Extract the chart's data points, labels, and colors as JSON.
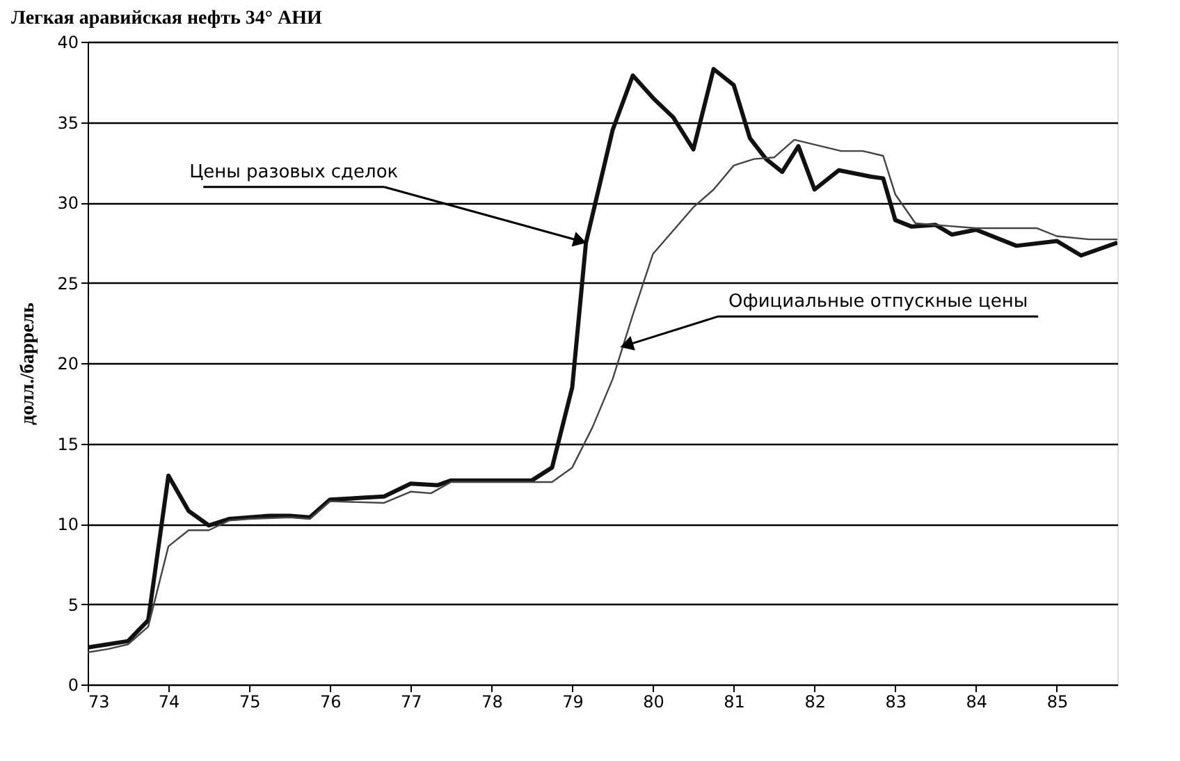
{
  "chart_data": {
    "type": "line",
    "title": "Легкая аравийская нефть 34°  АНИ",
    "ylabel": "долл./баррель",
    "xlim": [
      73,
      85.75
    ],
    "xticks": [
      73,
      74,
      75,
      76,
      77,
      78,
      79,
      80,
      81,
      82,
      83,
      84,
      85
    ],
    "ylim": [
      0,
      40
    ],
    "yticks": [
      0,
      5,
      10,
      15,
      20,
      25,
      30,
      35,
      40
    ],
    "grid": "y",
    "marker": "none",
    "line_style": "solid",
    "annotations": [
      {
        "text": "Цены разовых сделок",
        "x": 79.17,
        "y": 27.5
      },
      {
        "text": "Официальные отпускные цены",
        "x": 79.6,
        "y": 21
      }
    ],
    "series": [
      {
        "color": "#111111",
        "x": [
          73.0,
          73.25,
          73.5,
          73.75,
          74.0,
          74.25,
          74.5,
          74.75,
          75.0,
          75.25,
          75.5,
          75.75,
          76.0,
          76.33,
          76.67,
          77.0,
          77.33,
          77.5,
          78.0,
          78.5,
          78.75,
          79.0,
          79.17,
          79.5,
          79.75,
          80.0,
          80.25,
          80.5,
          80.75,
          81.0,
          81.2,
          81.4,
          81.6,
          81.8,
          82.0,
          82.3,
          82.7,
          82.85,
          83.0,
          83.2,
          83.5,
          83.7,
          84.0,
          84.5,
          85.0,
          85.3,
          85.75
        ],
        "values": [
          2.3,
          2.5,
          2.7,
          4.0,
          13.0,
          10.8,
          9.9,
          10.3,
          10.4,
          10.5,
          10.5,
          10.4,
          11.5,
          11.6,
          11.7,
          12.5,
          12.4,
          12.7,
          12.7,
          12.7,
          13.5,
          18.5,
          27.5,
          34.5,
          37.9,
          36.5,
          35.3,
          33.3,
          38.3,
          37.3,
          34.0,
          32.7,
          31.9,
          33.5,
          30.8,
          32.0,
          31.6,
          31.5,
          28.9,
          28.5,
          28.6,
          28.0,
          28.3,
          27.3,
          27.6,
          26.7,
          27.5
        ]
      },
      {
        "color": "#444444",
        "x": [
          73.0,
          73.25,
          73.5,
          73.75,
          74.0,
          74.25,
          74.5,
          74.75,
          75.0,
          75.5,
          75.75,
          76.0,
          76.67,
          77.0,
          77.25,
          77.5,
          78.0,
          78.75,
          79.0,
          79.25,
          79.5,
          79.75,
          80.0,
          80.5,
          80.75,
          81.0,
          81.25,
          81.5,
          81.75,
          82.0,
          82.33,
          82.6,
          82.85,
          83.0,
          83.25,
          83.5,
          84.0,
          84.75,
          85.0,
          85.4,
          85.75
        ],
        "values": [
          2.0,
          2.2,
          2.5,
          3.6,
          8.6,
          9.6,
          9.6,
          10.2,
          10.3,
          10.4,
          10.3,
          11.4,
          11.3,
          12.0,
          11.9,
          12.6,
          12.6,
          12.6,
          13.5,
          16.0,
          19.0,
          23.0,
          26.8,
          29.7,
          30.8,
          32.3,
          32.7,
          32.8,
          33.9,
          33.6,
          33.2,
          33.2,
          32.9,
          30.5,
          28.7,
          28.6,
          28.4,
          28.4,
          27.9,
          27.7,
          27.7
        ]
      }
    ]
  }
}
